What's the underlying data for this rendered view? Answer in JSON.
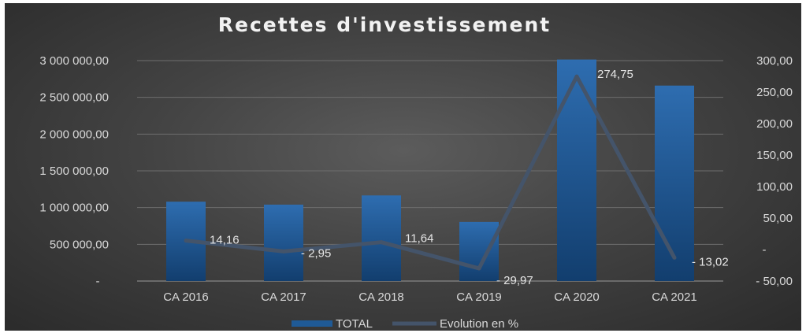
{
  "chart_data": {
    "type": "bar",
    "title": "Recettes d'investissement",
    "categories": [
      "CA 2016",
      "CA 2017",
      "CA 2018",
      "CA 2019",
      "CA 2020",
      "CA 2021"
    ],
    "series": [
      {
        "name": "TOTAL",
        "type": "bar",
        "axis": "left",
        "color": "#1f5a96",
        "values": [
          1080000,
          1040000,
          1165000,
          805000,
          3015000,
          2660000
        ]
      },
      {
        "name": "Evolution en %",
        "type": "line",
        "axis": "right",
        "color": "#44546a",
        "values": [
          14.16,
          -2.95,
          11.64,
          -29.97,
          274.75,
          -13.02
        ],
        "data_labels": [
          "14,16",
          "- 2,95",
          "11,64",
          "- 29,97",
          "274,75",
          "- 13,02"
        ]
      }
    ],
    "y_left": {
      "ylim": [
        0,
        3000000
      ],
      "ticks": [
        0,
        500000,
        1000000,
        1500000,
        2000000,
        2500000,
        3000000
      ],
      "tick_labels": [
        "-",
        "500 000,00",
        "1 000 000,00",
        "1 500 000,00",
        "2 000 000,00",
        "2 500 000,00",
        "3 000 000,00"
      ]
    },
    "y_right": {
      "ylim": [
        -50,
        300
      ],
      "ticks": [
        -50,
        0,
        50,
        100,
        150,
        200,
        250,
        300
      ],
      "tick_labels": [
        "- 50,00",
        "-",
        "50,00",
        "100,00",
        "150,00",
        "200,00",
        "250,00",
        "300,00"
      ]
    },
    "grid": true,
    "legend": "bottom"
  }
}
